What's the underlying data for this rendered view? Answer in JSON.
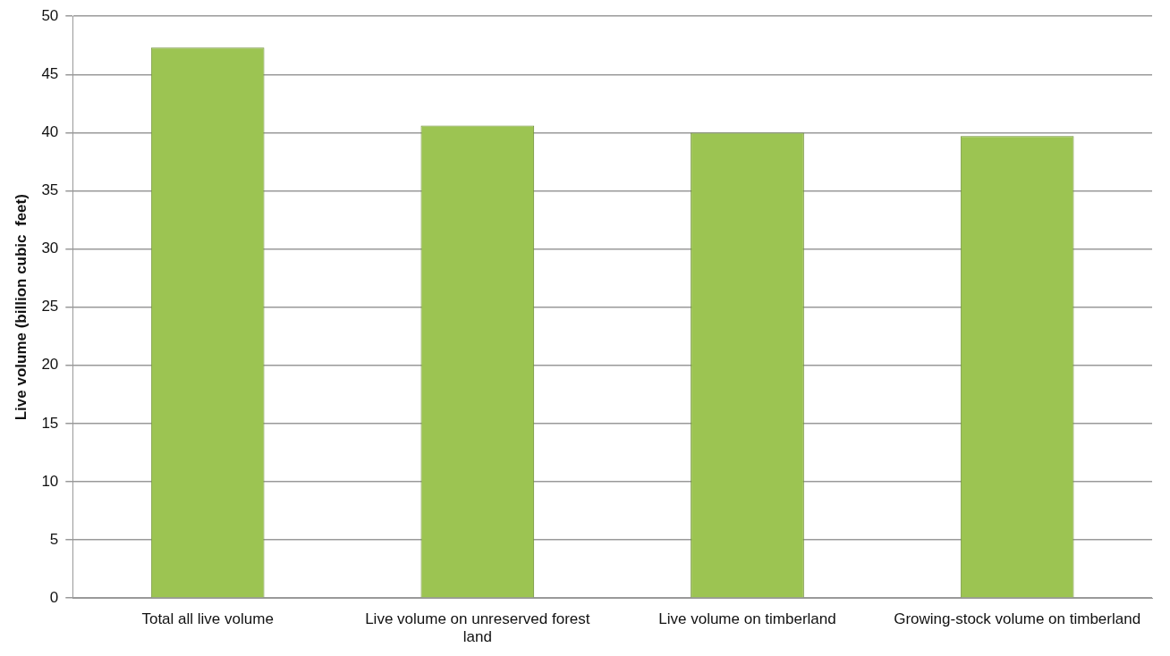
{
  "chart_data": {
    "type": "bar",
    "ylabel": "Live volume (billion cubic  feet)",
    "categories": [
      "Total all live volume",
      "Live volume on unreserved forest land",
      "Live volume on timberland",
      "Growing-stock volume on timberland"
    ],
    "values": [
      47.3,
      40.6,
      40.0,
      39.7
    ],
    "color": "#9cc452",
    "ylim": [
      0,
      50
    ],
    "yticks": [
      0,
      5,
      10,
      15,
      20,
      25,
      30,
      35,
      40,
      45,
      50
    ],
    "grid": "y",
    "legend": false
  }
}
